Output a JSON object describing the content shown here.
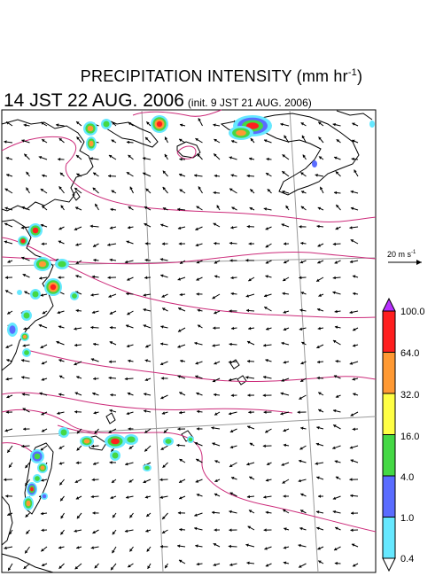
{
  "title": "PRECIPITATION INTENSITY (mm hr",
  "title_unit_exp": "-1",
  "title_close": ")",
  "valid_time": "14 JST 22 AUG. 2006",
  "init_time": "(init. 9 JST 21 AUG. 2006)",
  "vector_scale": {
    "label": "20 m s",
    "exp": "-1"
  },
  "colorbar": {
    "levels": [
      "0.4",
      "1.0",
      "4.0",
      "16.0",
      "32.0",
      "64.0",
      "100.0"
    ],
    "colors": [
      "#66e8ff",
      "#5a6cff",
      "#44d844",
      "#ffff44",
      "#ff9933",
      "#ff1f1f",
      "#b830ff"
    ]
  },
  "map": {
    "coast_color": "#000000",
    "contour_color": "#cc2b7a",
    "grid_color": "#9a9a9a",
    "vector_color": "#000000"
  }
}
